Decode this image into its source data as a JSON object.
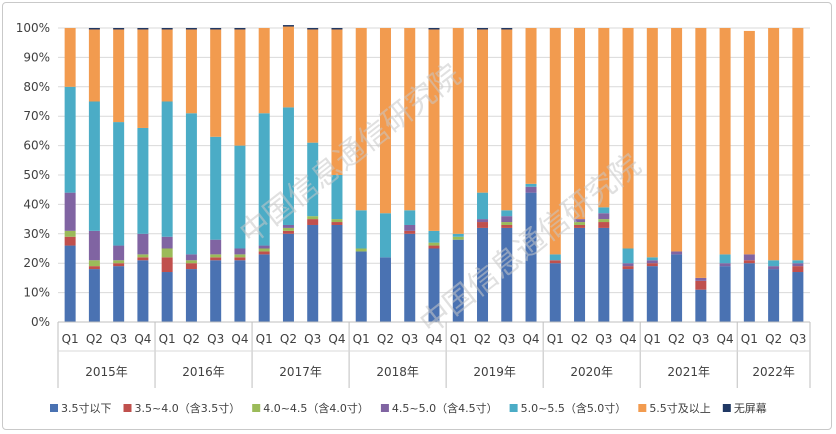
{
  "chart_data": {
    "type": "bar",
    "stacked": true,
    "percent": true,
    "watermark": "中国信息通信研究院",
    "ylim": [
      0,
      100
    ],
    "yticks": [
      "0%",
      "10%",
      "20%",
      "30%",
      "40%",
      "50%",
      "60%",
      "70%",
      "80%",
      "90%",
      "100%"
    ],
    "grid": true,
    "legend_position": "bottom",
    "quarters": [
      "Q1",
      "Q2",
      "Q3",
      "Q4",
      "Q1",
      "Q2",
      "Q3",
      "Q4",
      "Q1",
      "Q2",
      "Q3",
      "Q4",
      "Q1",
      "Q2",
      "Q3",
      "Q4",
      "Q1",
      "Q2",
      "Q3",
      "Q4",
      "Q1",
      "Q2",
      "Q3",
      "Q4",
      "Q1",
      "Q2",
      "Q3",
      "Q4",
      "Q1",
      "Q2",
      "Q3"
    ],
    "years": [
      {
        "label": "2015年",
        "count": 4
      },
      {
        "label": "2016年",
        "count": 4
      },
      {
        "label": "2017年",
        "count": 4
      },
      {
        "label": "2018年",
        "count": 4
      },
      {
        "label": "2019年",
        "count": 4
      },
      {
        "label": "2020年",
        "count": 4
      },
      {
        "label": "2021年",
        "count": 4
      },
      {
        "label": "2022年",
        "count": 3
      }
    ],
    "series": [
      {
        "name": "3.5寸以下",
        "color": "#4a72b2",
        "values": [
          26,
          18,
          19,
          21,
          17,
          18,
          21,
          21,
          23,
          30,
          33,
          33,
          24,
          22,
          30,
          25,
          28,
          32,
          32,
          44,
          20,
          32,
          32,
          18,
          19,
          23,
          11,
          19,
          20,
          18,
          17
        ]
      },
      {
        "name": "3.5~4.0（含3.5寸）",
        "color": "#c0504d",
        "values": [
          3,
          1,
          1,
          1,
          5,
          2,
          1,
          1,
          1,
          1,
          2,
          1,
          0,
          0,
          1,
          1,
          0,
          2,
          1,
          0,
          1,
          1,
          2,
          1,
          1,
          0,
          3,
          0,
          1,
          0,
          2
        ]
      },
      {
        "name": "4.0~4.5（含4.0寸）",
        "color": "#9bbb59",
        "values": [
          2,
          2,
          1,
          1,
          3,
          1,
          1,
          1,
          1,
          1,
          1,
          1,
          1,
          0,
          0,
          1,
          1,
          0,
          1,
          0,
          0,
          1,
          1,
          0,
          0,
          0,
          0,
          0,
          0,
          0,
          0
        ]
      },
      {
        "name": "4.5~5.0（含4.5寸）",
        "color": "#8064a2",
        "values": [
          13,
          10,
          5,
          7,
          4,
          2,
          5,
          2,
          1,
          1,
          0,
          0,
          0,
          0,
          2,
          0,
          0,
          1,
          2,
          2,
          0,
          1,
          2,
          1,
          1,
          1,
          1,
          1,
          2,
          1,
          1
        ]
      },
      {
        "name": "5.0~5.5（含5.0寸）",
        "color": "#4bacc6",
        "values": [
          36,
          44,
          42,
          36,
          46,
          48,
          35,
          35,
          45,
          40,
          25,
          15,
          13,
          15,
          5,
          4,
          1,
          9,
          2,
          1,
          2,
          0,
          2,
          5,
          1,
          0,
          0,
          3,
          0,
          2,
          1
        ]
      },
      {
        "name": "5.5寸及以上",
        "color": "#f29b4f",
        "values": [
          20,
          24.5,
          31.5,
          33.5,
          24.5,
          28.5,
          36.5,
          39.5,
          29,
          27.5,
          38.5,
          49.5,
          62,
          63,
          62,
          68.5,
          70,
          55.5,
          61.5,
          53,
          77,
          65,
          61,
          75,
          78,
          76,
          85,
          77,
          76,
          79,
          79
        ]
      },
      {
        "name": "无屏幕",
        "color": "#203864",
        "values": [
          0,
          0.5,
          0.5,
          0.5,
          0.5,
          0.5,
          0.5,
          0.5,
          0,
          0.5,
          0.5,
          0.5,
          0,
          0,
          0,
          0.5,
          0,
          0.5,
          0.5,
          0,
          0,
          0,
          0,
          0,
          0,
          0,
          0,
          0,
          0,
          0,
          0
        ]
      }
    ]
  }
}
